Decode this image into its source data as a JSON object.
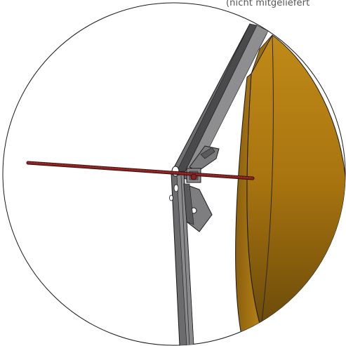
{
  "caption": "(nicht mitgeliefert",
  "colors": {
    "background": "#ffffff",
    "frame_metal": "#6e6e70",
    "frame_metal_light": "#9a9a9c",
    "frame_metal_dark": "#3c3c3e",
    "rod": "#7a1d1d",
    "panel_wood": "#b07a14",
    "panel_wood_dark": "#7a5208",
    "outline": "#1a1a1a"
  }
}
